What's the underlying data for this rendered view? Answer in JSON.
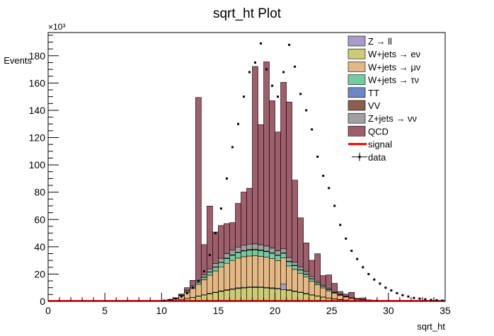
{
  "chart_data": {
    "type": "bar",
    "title": "sqrt_ht Plot",
    "xlabel": "sqrt_ht",
    "ylabel": "Events",
    "y_multiplier_label": "×10³",
    "xlim": [
      0,
      35
    ],
    "ylim": [
      0,
      197
    ],
    "y_unit_multiplier": 1000,
    "bin_width": 0.5,
    "bin_starts": [
      10.0,
      10.5,
      11.0,
      11.5,
      12.0,
      12.5,
      13.0,
      13.5,
      14.0,
      14.5,
      15.0,
      15.5,
      16.0,
      16.5,
      17.0,
      17.5,
      18.0,
      18.5,
      19.0,
      19.5,
      20.0,
      20.5,
      21.0,
      21.5,
      22.0,
      22.5,
      23.0,
      23.5,
      24.0,
      24.5,
      25.0,
      25.5,
      26.0,
      26.5,
      27.0,
      27.5,
      28.0,
      28.5,
      29.0,
      29.5,
      30.0,
      30.5,
      31.0,
      31.5,
      32.0,
      32.5,
      33.0,
      33.5,
      34.0,
      34.5
    ],
    "x_ticks": [
      0,
      5,
      10,
      15,
      20,
      25,
      30,
      35
    ],
    "y_ticks": [
      0,
      20,
      40,
      60,
      80,
      100,
      120,
      140,
      160,
      180
    ],
    "legend_position": "top-right",
    "stacked": true,
    "series": [
      {
        "name": "W+jets → eν",
        "color": "#cccc77",
        "values": [
          0.1,
          0.3,
          0.6,
          1.2,
          2.0,
          2.8,
          3.7,
          4.6,
          5.5,
          6.4,
          7.3,
          8.1,
          8.8,
          9.4,
          9.8,
          10.0,
          10.1,
          10.0,
          9.8,
          9.4,
          9.0,
          8.6,
          8.0,
          7.2,
          6.4,
          5.5,
          4.6,
          3.8,
          3.0,
          2.4,
          1.8,
          1.3,
          0.9,
          0.6,
          0.4,
          0.3,
          0.2,
          0.1,
          0.1,
          0,
          0,
          0,
          0,
          0,
          0,
          0,
          0,
          0,
          0,
          0
        ]
      },
      {
        "name": "Z → ll",
        "color": "#a79cc9",
        "values": [
          0,
          0,
          0,
          0,
          0.1,
          0.1,
          0.2,
          0.2,
          0.3,
          0.3,
          0.4,
          0.4,
          0.4,
          0.5,
          0.5,
          0.5,
          0.5,
          0.5,
          0.5,
          0.5,
          0.5,
          4.0,
          0.4,
          0.4,
          0.3,
          0.3,
          0.2,
          0.2,
          0.2,
          0.1,
          0.1,
          0.1,
          0.1,
          0,
          0,
          0,
          0,
          0,
          0,
          0,
          0,
          0,
          0,
          0,
          0,
          0,
          0,
          0,
          0,
          0
        ]
      },
      {
        "name": "W+jets → μν",
        "color": "#e3b884",
        "values": [
          0.2,
          0.6,
          1.4,
          2.8,
          4.5,
          6.5,
          8.6,
          11.0,
          13.4,
          15.6,
          17.6,
          19.4,
          20.8,
          21.8,
          22.4,
          22.7,
          22.8,
          22.5,
          22.0,
          21.4,
          20.4,
          19.2,
          17.6,
          15.8,
          13.9,
          12.0,
          10.0,
          8.2,
          6.6,
          5.2,
          4.0,
          3.0,
          2.2,
          1.6,
          1.1,
          0.8,
          0.5,
          0.3,
          0.2,
          0.1,
          0.1,
          0,
          0,
          0,
          0,
          0,
          0,
          0,
          0,
          0
        ]
      },
      {
        "name": "W+jets → τν",
        "color": "#74cc9e",
        "values": [
          0,
          0.1,
          0.2,
          0.4,
          0.7,
          1.0,
          1.4,
          1.8,
          2.2,
          2.7,
          3.1,
          3.5,
          3.8,
          4.0,
          4.2,
          4.3,
          4.3,
          4.2,
          4.1,
          3.9,
          3.7,
          3.4,
          3.1,
          2.7,
          2.3,
          2.0,
          1.6,
          1.3,
          1.0,
          0.8,
          0.6,
          0.4,
          0.3,
          0.2,
          0.1,
          0.1,
          0.1,
          0,
          0,
          0,
          0,
          0,
          0,
          0,
          0,
          0,
          0,
          0,
          0,
          0
        ]
      },
      {
        "name": "TT",
        "color": "#6d87c4",
        "values": [
          0,
          0,
          0,
          0,
          0,
          0,
          0.1,
          0.1,
          0.1,
          0.1,
          0.1,
          0.2,
          0.2,
          0.2,
          0.2,
          0.2,
          0.2,
          0.2,
          0.2,
          0.2,
          0.2,
          0.2,
          0.2,
          0.2,
          0.1,
          0.1,
          0.1,
          0.1,
          0.1,
          0.1,
          0.1,
          0,
          0,
          0,
          0,
          0,
          0,
          0,
          0,
          0,
          0,
          0,
          0,
          0,
          0,
          0,
          0,
          0,
          0,
          0
        ]
      },
      {
        "name": "VV",
        "color": "#8c5f4d",
        "values": [
          0,
          0,
          0,
          0,
          0,
          0,
          0,
          0.1,
          0.1,
          0.1,
          0.1,
          0.1,
          0.1,
          0.1,
          0.1,
          0.2,
          0.2,
          0.2,
          0.2,
          0.1,
          0.1,
          0.1,
          0.1,
          0.1,
          0.1,
          0.1,
          0.1,
          0.1,
          0,
          0,
          0,
          0,
          0,
          0,
          0,
          0,
          0,
          0,
          0,
          0,
          0,
          0,
          0,
          0,
          0,
          0,
          0,
          0,
          0,
          0
        ]
      },
      {
        "name": "Z+jets → νν",
        "color": "#a0a0a0",
        "values": [
          0,
          0.1,
          0.2,
          0.4,
          0.7,
          1.0,
          1.4,
          1.8,
          2.2,
          2.6,
          3.0,
          3.3,
          3.6,
          3.8,
          3.9,
          4.0,
          4.0,
          3.9,
          3.7,
          3.5,
          3.2,
          3.0,
          2.7,
          2.4,
          2.1,
          1.8,
          1.5,
          1.2,
          1.0,
          0.8,
          0.6,
          0.4,
          0.3,
          0.2,
          0.1,
          0.1,
          0,
          0,
          0,
          0,
          0,
          0,
          0,
          0,
          0,
          0,
          0,
          0,
          0,
          0
        ]
      },
      {
        "name": "QCD",
        "color": "#9e5e6c",
        "values": [
          0.2,
          0.3,
          0.2,
          0.5,
          2.0,
          4.0,
          134.0,
          22.0,
          46.0,
          23.0,
          24.0,
          22.0,
          20.0,
          32.0,
          39.0,
          41.0,
          130.0,
          88.0,
          135.0,
          108.0,
          87.0,
          122.0,
          114.0,
          60.0,
          36.0,
          21.0,
          12.0,
          20.0,
          7.0,
          10.0,
          6.0,
          2.0,
          1.5,
          4.0,
          0.5,
          1.2,
          0.3,
          0.5,
          0.2,
          0.2,
          0.1,
          0.1,
          0.1,
          0,
          0,
          0,
          0,
          0,
          0,
          0
        ]
      },
      {
        "name": "signal",
        "color": "#ff0000",
        "line": true,
        "values": [
          0.3,
          0.3,
          0.3,
          0.3,
          0.3,
          0.3,
          0.3,
          0.3,
          0.3,
          0.3,
          0.3,
          0.3,
          0.3,
          0.3,
          0.3,
          0.3,
          0.3,
          0.3,
          0.3,
          0.3,
          0.3,
          0.3,
          0.3,
          0.3,
          0.3,
          0.3,
          0.3,
          0.3,
          0.3,
          0.3,
          0.3,
          0.3,
          0.3,
          0.3,
          0.3,
          0.3,
          0.3,
          0.3,
          0.3,
          0.3,
          0.3,
          0.3,
          0.3,
          0.3,
          0.3,
          0.3,
          0.3,
          0.3,
          0.3,
          0.3
        ]
      }
    ],
    "data_points": {
      "name": "data",
      "color": "#000000",
      "x": [
        10.25,
        10.75,
        11.25,
        11.75,
        12.25,
        12.75,
        13.25,
        13.75,
        14.25,
        14.75,
        15.25,
        15.75,
        16.25,
        16.75,
        17.25,
        17.75,
        18.25,
        18.75,
        19.25,
        19.75,
        20.25,
        20.75,
        21.25,
        21.75,
        22.25,
        22.75,
        23.25,
        23.75,
        24.25,
        24.75,
        25.25,
        25.75,
        26.25,
        26.75,
        27.25,
        27.75,
        28.25,
        28.75,
        29.25,
        29.75,
        30.25,
        30.75,
        31.25,
        31.75,
        32.25,
        32.75,
        33.25,
        33.75,
        34.25,
        34.75
      ],
      "y": [
        0.5,
        1.0,
        2.0,
        3.5,
        6.0,
        10.0,
        15.0,
        22.0,
        34.0,
        50.0,
        68.0,
        90.0,
        113.0,
        130.0,
        150.0,
        168.0,
        175.0,
        189.0,
        170.0,
        158.0,
        150.0,
        168.0,
        188.0,
        172.0,
        152.0,
        140.0,
        126.0,
        106.0,
        92.0,
        83.0,
        70.0,
        56.0,
        46.0,
        37.0,
        31.0,
        25.0,
        20.0,
        16.0,
        13.0,
        10.0,
        8.0,
        6.0,
        4.5,
        3.5,
        2.5,
        2.0,
        1.5,
        1.0,
        0.8,
        0.5
      ]
    },
    "legend": [
      "Z → ll",
      "W+jets → eν",
      "W+jets → μν",
      "W+jets → τν",
      "TT",
      "VV",
      "Z+jets → νν",
      "QCD",
      "signal",
      "data"
    ]
  }
}
